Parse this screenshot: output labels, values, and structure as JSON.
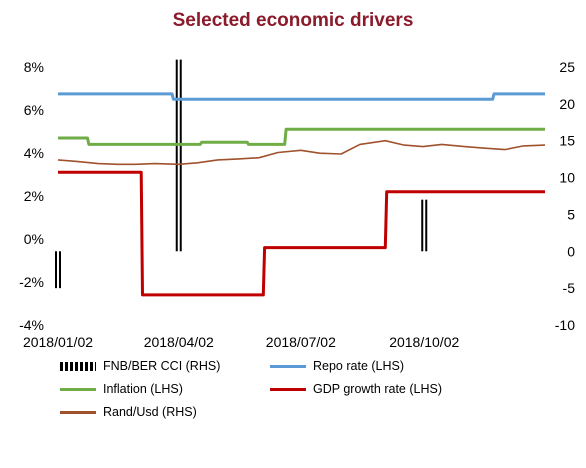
{
  "chart_data": {
    "type": "line",
    "title": "Selected economic drivers",
    "colors": {
      "title": "#8b1a2b",
      "fnb_ber_cci": "#000000",
      "repo": "#5b9bd5",
      "inflation": "#70ad47",
      "gdp": "#c00000",
      "rand": "#a0522d"
    },
    "x_axis": {
      "type": "date",
      "range": [
        "2018-01-02",
        "2018-12-31"
      ],
      "tick_labels": [
        "2018/01/02",
        "2018/04/02",
        "2018/07/02",
        "2018/10/02"
      ],
      "tick_dates": [
        "2018-01-02",
        "2018-04-02",
        "2018-07-02",
        "2018-10-02"
      ]
    },
    "y_left": {
      "range": [
        -4,
        8
      ],
      "ticks": [
        -4,
        -2,
        0,
        2,
        4,
        6,
        8
      ],
      "tick_labels": [
        "-4%",
        "-2%",
        "0%",
        "2%",
        "4%",
        "6%",
        "8%"
      ]
    },
    "y_right": {
      "range": [
        -10,
        25
      ],
      "ticks": [
        -10,
        -5,
        0,
        5,
        10,
        15,
        20,
        25
      ],
      "tick_labels": [
        "-10",
        "-5",
        "0",
        "5",
        "10",
        "15",
        "20",
        "25"
      ]
    },
    "grid": false,
    "legend_position": "bottom",
    "series": [
      {
        "name": "FNB/BER CCI (RHS)",
        "key": "fnb_ber_cci",
        "axis": "right",
        "style": "bar",
        "points": [
          {
            "x": "2018-01-02",
            "y": -5
          },
          {
            "x": "2018-04-02",
            "y": 26
          },
          {
            "x": "2018-10-02",
            "y": 7
          }
        ]
      },
      {
        "name": "Repo rate (LHS)",
        "key": "repo",
        "axis": "left",
        "style": "step",
        "points": [
          {
            "x": "2018-01-02",
            "y": 6.75
          },
          {
            "x": "2018-03-28",
            "y": 6.75
          },
          {
            "x": "2018-03-29",
            "y": 6.5
          },
          {
            "x": "2018-11-22",
            "y": 6.5
          },
          {
            "x": "2018-11-23",
            "y": 6.75
          },
          {
            "x": "2018-12-31",
            "y": 6.75
          }
        ]
      },
      {
        "name": "Inflation (LHS)",
        "key": "inflation",
        "axis": "left",
        "style": "step",
        "points": [
          {
            "x": "2018-01-02",
            "y": 4.7
          },
          {
            "x": "2018-01-24",
            "y": 4.7
          },
          {
            "x": "2018-01-25",
            "y": 4.4
          },
          {
            "x": "2018-04-18",
            "y": 4.4
          },
          {
            "x": "2018-04-19",
            "y": 4.5
          },
          {
            "x": "2018-05-23",
            "y": 4.5
          },
          {
            "x": "2018-05-24",
            "y": 4.4
          },
          {
            "x": "2018-06-20",
            "y": 4.4
          },
          {
            "x": "2018-06-21",
            "y": 5.1
          },
          {
            "x": "2018-12-31",
            "y": 5.1
          }
        ]
      },
      {
        "name": "GDP growth rate (LHS)",
        "key": "gdp",
        "axis": "left",
        "style": "step",
        "points": [
          {
            "x": "2018-01-02",
            "y": 3.1
          },
          {
            "x": "2018-03-05",
            "y": 3.1
          },
          {
            "x": "2018-03-06",
            "y": -2.6
          },
          {
            "x": "2018-06-04",
            "y": -2.6
          },
          {
            "x": "2018-06-05",
            "y": -0.4
          },
          {
            "x": "2018-09-03",
            "y": -0.4
          },
          {
            "x": "2018-09-04",
            "y": 2.2
          },
          {
            "x": "2018-12-31",
            "y": 2.2
          }
        ]
      },
      {
        "name": "Rand/Usd (RHS)",
        "key": "rand",
        "axis": "right",
        "style": "line",
        "points": [
          {
            "x": "2018-01-02",
            "y": 12.4
          },
          {
            "x": "2018-01-16",
            "y": 12.2
          },
          {
            "x": "2018-02-01",
            "y": 11.9
          },
          {
            "x": "2018-02-15",
            "y": 11.8
          },
          {
            "x": "2018-03-01",
            "y": 11.8
          },
          {
            "x": "2018-03-15",
            "y": 11.9
          },
          {
            "x": "2018-04-02",
            "y": 11.8
          },
          {
            "x": "2018-04-16",
            "y": 12.0
          },
          {
            "x": "2018-05-01",
            "y": 12.4
          },
          {
            "x": "2018-05-15",
            "y": 12.5
          },
          {
            "x": "2018-06-01",
            "y": 12.7
          },
          {
            "x": "2018-06-15",
            "y": 13.4
          },
          {
            "x": "2018-07-02",
            "y": 13.7
          },
          {
            "x": "2018-07-16",
            "y": 13.3
          },
          {
            "x": "2018-08-01",
            "y": 13.2
          },
          {
            "x": "2018-08-15",
            "y": 14.5
          },
          {
            "x": "2018-09-03",
            "y": 15.0
          },
          {
            "x": "2018-09-17",
            "y": 14.4
          },
          {
            "x": "2018-10-01",
            "y": 14.2
          },
          {
            "x": "2018-10-15",
            "y": 14.5
          },
          {
            "x": "2018-11-01",
            "y": 14.2
          },
          {
            "x": "2018-11-15",
            "y": 14.0
          },
          {
            "x": "2018-12-01",
            "y": 13.8
          },
          {
            "x": "2018-12-15",
            "y": 14.3
          },
          {
            "x": "2018-12-31",
            "y": 14.4
          }
        ]
      }
    ]
  }
}
